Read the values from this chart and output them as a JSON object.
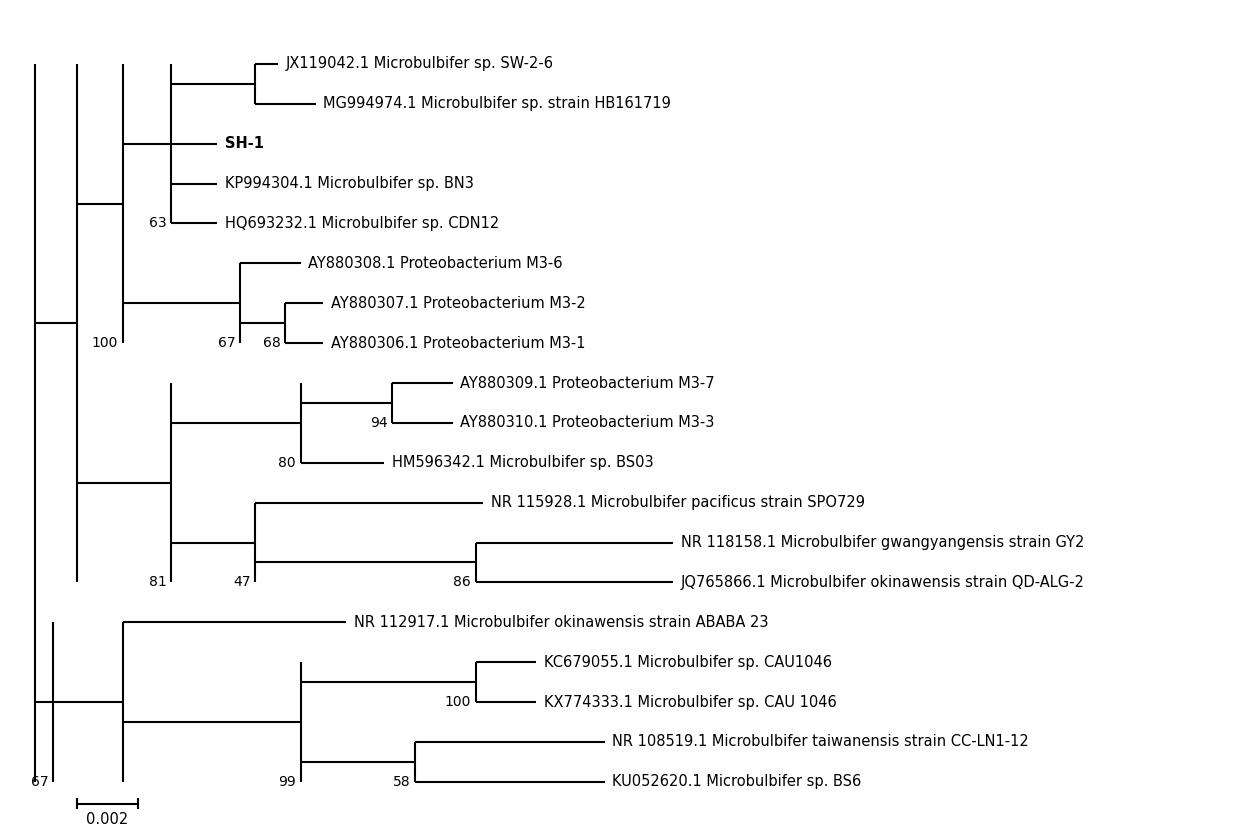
{
  "taxa_order": [
    "JX119042.1 Microbulbifer sp. SW-2-6",
    "MG994974.1 Microbulbifer sp. strain HB161719",
    "SH-1",
    "KP994304.1 Microbulbifer sp. BN3",
    "HQ693232.1 Microbulbifer sp. CDN12",
    "AY880308.1 Proteobacterium M3-6",
    "AY880307.1 Proteobacterium M3-2",
    "AY880306.1 Proteobacterium M3-1",
    "AY880309.1 Proteobacterium M3-7",
    "AY880310.1 Proteobacterium M3-3",
    "HM596342.1 Microbulbifer sp. BS03",
    "NR 115928.1 Microbulbifer pacificus strain SPO729",
    "NR 118158.1 Microbulbifer gwangyangensis strain GY2",
    "JQ765866.1 Microbulbifer okinawensis strain QD-ALG-2",
    "NR 112917.1 Microbulbifer okinawensis strain ABABA 23",
    "KC679055.1 Microbulbifer sp. CAU1046",
    "KX774333.1 Microbulbifer sp. CAU 1046",
    "NR 108519.1 Microbulbifer taiwanensis strain CC-LN1-12",
    "KU052620.1 Microbulbifer sp. BS6"
  ],
  "bold_taxa": [
    "SH-1"
  ],
  "background_color": "#ffffff",
  "line_color": "#000000",
  "text_color": "#000000",
  "scale_bar_value": "0.002",
  "font_size": 10.5,
  "line_width": 1.5
}
